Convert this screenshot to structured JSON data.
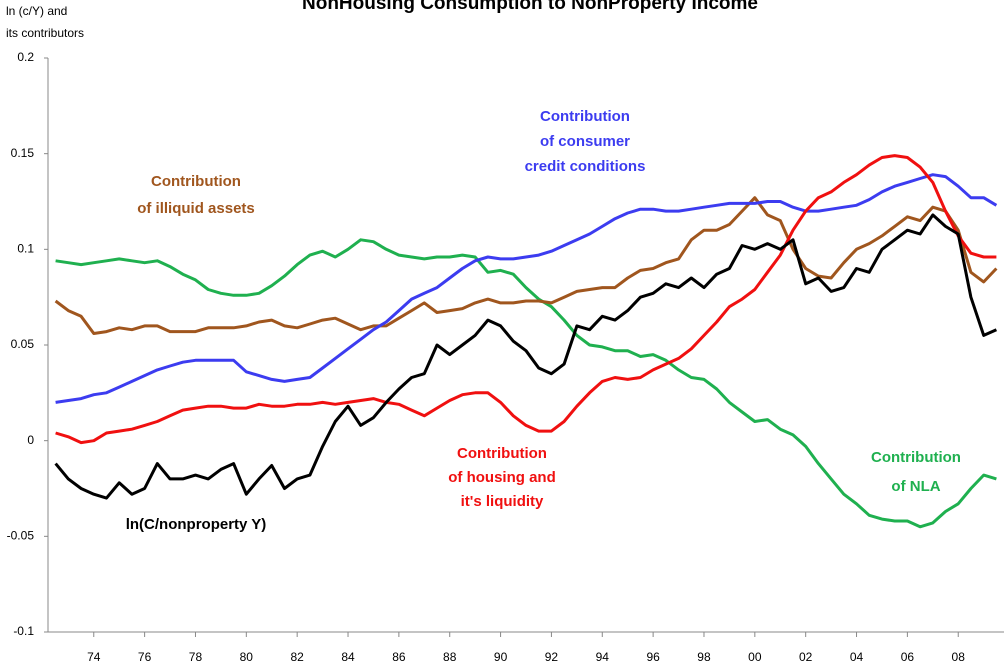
{
  "chart_data": {
    "type": "line",
    "title": "NonHousing Consumption to NonProperty Income",
    "y_label": [
      "ln (c/Y) and",
      "its contributors"
    ],
    "x": [
      1972.5,
      1973,
      1973.5,
      1974,
      1974.5,
      1975,
      1975.5,
      1976,
      1976.5,
      1977,
      1977.5,
      1978,
      1978.5,
      1979,
      1979.5,
      1980,
      1980.5,
      1981,
      1981.5,
      1982,
      1982.5,
      1983,
      1983.5,
      1984,
      1984.5,
      1985,
      1985.5,
      1986,
      1986.5,
      1987,
      1987.5,
      1988,
      1988.5,
      1989,
      1989.5,
      1990,
      1990.5,
      1991,
      1991.5,
      1992,
      1992.5,
      1993,
      1993.5,
      1994,
      1994.5,
      1995,
      1995.5,
      1996,
      1996.5,
      1997,
      1997.5,
      1998,
      1998.5,
      1999,
      1999.5,
      2000,
      2000.5,
      2001,
      2001.5,
      2002,
      2002.5,
      2003,
      2003.5,
      2004,
      2004.5,
      2005,
      2005.5,
      2006,
      2006.5,
      2007,
      2007.5,
      2008,
      2008.5,
      2009,
      2009.5
    ],
    "xlim": [
      1972.2,
      2009.8
    ],
    "xticks": [
      {
        "value": 1974,
        "label": "74"
      },
      {
        "value": 1976,
        "label": "76"
      },
      {
        "value": 1978,
        "label": "78"
      },
      {
        "value": 1980,
        "label": "80"
      },
      {
        "value": 1982,
        "label": "82"
      },
      {
        "value": 1984,
        "label": "84"
      },
      {
        "value": 1986,
        "label": "86"
      },
      {
        "value": 1988,
        "label": "88"
      },
      {
        "value": 1990,
        "label": "90"
      },
      {
        "value": 1992,
        "label": "92"
      },
      {
        "value": 1994,
        "label": "94"
      },
      {
        "value": 1996,
        "label": "96"
      },
      {
        "value": 1998,
        "label": "98"
      },
      {
        "value": 2000,
        "label": "00"
      },
      {
        "value": 2002,
        "label": "02"
      },
      {
        "value": 2004,
        "label": "04"
      },
      {
        "value": 2006,
        "label": "06"
      },
      {
        "value": 2008,
        "label": "08"
      }
    ],
    "ylim": [
      -0.1,
      0.2
    ],
    "yticks": [
      -0.1,
      -0.05,
      0,
      0.05,
      0.1,
      0.15,
      0.2
    ],
    "grid": false,
    "series": [
      {
        "name": "Contribution of NLA",
        "color": "#1fb04f",
        "values": [
          0.094,
          0.093,
          0.092,
          0.093,
          0.094,
          0.095,
          0.094,
          0.093,
          0.094,
          0.091,
          0.087,
          0.084,
          0.079,
          0.077,
          0.076,
          0.076,
          0.077,
          0.081,
          0.086,
          0.092,
          0.097,
          0.099,
          0.096,
          0.1,
          0.105,
          0.104,
          0.1,
          0.097,
          0.096,
          0.095,
          0.096,
          0.096,
          0.097,
          0.096,
          0.088,
          0.089,
          0.087,
          0.08,
          0.074,
          0.07,
          0.063,
          0.055,
          0.05,
          0.049,
          0.047,
          0.047,
          0.044,
          0.045,
          0.042,
          0.037,
          0.033,
          0.032,
          0.027,
          0.02,
          0.015,
          0.01,
          0.011,
          0.006,
          0.003,
          -0.003,
          -0.012,
          -0.02,
          -0.028,
          -0.033,
          -0.039,
          -0.041,
          -0.042,
          -0.042,
          -0.045,
          -0.043,
          -0.037,
          -0.033,
          -0.025,
          -0.018,
          -0.02
        ]
      },
      {
        "name": "Contribution of illiquid assets",
        "color": "#a0561e",
        "values": [
          0.073,
          0.068,
          0.065,
          0.056,
          0.057,
          0.059,
          0.058,
          0.06,
          0.06,
          0.057,
          0.057,
          0.057,
          0.059,
          0.059,
          0.059,
          0.06,
          0.062,
          0.063,
          0.06,
          0.059,
          0.061,
          0.063,
          0.064,
          0.061,
          0.058,
          0.06,
          0.06,
          0.064,
          0.068,
          0.072,
          0.067,
          0.068,
          0.069,
          0.072,
          0.074,
          0.072,
          0.072,
          0.073,
          0.073,
          0.072,
          0.075,
          0.078,
          0.079,
          0.08,
          0.08,
          0.085,
          0.089,
          0.09,
          0.093,
          0.095,
          0.105,
          0.11,
          0.11,
          0.113,
          0.12,
          0.127,
          0.118,
          0.115,
          0.1,
          0.09,
          0.086,
          0.085,
          0.093,
          0.1,
          0.103,
          0.107,
          0.112,
          0.117,
          0.115,
          0.122,
          0.12,
          0.11,
          0.088,
          0.083,
          0.09
        ]
      },
      {
        "name": "Contribution of consumer credit conditions",
        "color": "#3c3cf0",
        "values": [
          0.02,
          0.021,
          0.022,
          0.024,
          0.025,
          0.028,
          0.031,
          0.034,
          0.037,
          0.039,
          0.041,
          0.042,
          0.042,
          0.042,
          0.042,
          0.036,
          0.034,
          0.032,
          0.031,
          0.032,
          0.033,
          0.038,
          0.043,
          0.048,
          0.053,
          0.058,
          0.062,
          0.068,
          0.074,
          0.077,
          0.08,
          0.085,
          0.09,
          0.094,
          0.096,
          0.095,
          0.095,
          0.096,
          0.097,
          0.099,
          0.102,
          0.105,
          0.108,
          0.112,
          0.116,
          0.119,
          0.121,
          0.121,
          0.12,
          0.12,
          0.121,
          0.122,
          0.123,
          0.124,
          0.124,
          0.124,
          0.125,
          0.125,
          0.122,
          0.12,
          0.12,
          0.121,
          0.122,
          0.123,
          0.126,
          0.13,
          0.133,
          0.135,
          0.137,
          0.139,
          0.138,
          0.133,
          0.127,
          0.127,
          0.123
        ]
      },
      {
        "name": "Contribution of housing and it's liquidity",
        "color": "#f01010",
        "values": [
          0.004,
          0.002,
          -0.001,
          0,
          0.004,
          0.005,
          0.006,
          0.008,
          0.01,
          0.013,
          0.016,
          0.017,
          0.018,
          0.018,
          0.017,
          0.017,
          0.019,
          0.018,
          0.018,
          0.019,
          0.019,
          0.02,
          0.019,
          0.02,
          0.021,
          0.022,
          0.02,
          0.019,
          0.016,
          0.013,
          0.017,
          0.021,
          0.024,
          0.025,
          0.025,
          0.02,
          0.013,
          0.008,
          0.005,
          0.005,
          0.01,
          0.018,
          0.025,
          0.031,
          0.033,
          0.032,
          0.033,
          0.037,
          0.04,
          0.043,
          0.048,
          0.055,
          0.062,
          0.07,
          0.074,
          0.079,
          0.088,
          0.097,
          0.11,
          0.12,
          0.127,
          0.13,
          0.135,
          0.139,
          0.144,
          0.148,
          0.149,
          0.148,
          0.143,
          0.135,
          0.12,
          0.107,
          0.098,
          0.096,
          0.096
        ]
      },
      {
        "name": "ln(C/nonproperty Y)",
        "color": "#000000",
        "values": [
          -0.012,
          -0.02,
          -0.025,
          -0.028,
          -0.03,
          -0.022,
          -0.028,
          -0.025,
          -0.012,
          -0.02,
          -0.02,
          -0.018,
          -0.02,
          -0.015,
          -0.012,
          -0.028,
          -0.02,
          -0.013,
          -0.025,
          -0.02,
          -0.018,
          -0.003,
          0.01,
          0.018,
          0.008,
          0.012,
          0.02,
          0.027,
          0.033,
          0.035,
          0.05,
          0.045,
          0.05,
          0.055,
          0.063,
          0.06,
          0.052,
          0.047,
          0.038,
          0.035,
          0.04,
          0.06,
          0.058,
          0.065,
          0.063,
          0.068,
          0.075,
          0.077,
          0.082,
          0.08,
          0.085,
          0.08,
          0.087,
          0.09,
          0.102,
          0.1,
          0.103,
          0.1,
          0.105,
          0.082,
          0.085,
          0.078,
          0.08,
          0.09,
          0.088,
          0.1,
          0.105,
          0.11,
          0.108,
          0.118,
          0.112,
          0.108,
          0.075,
          0.055,
          0.058
        ]
      }
    ],
    "annotations": [
      {
        "text": [
          "Contribution",
          "of illiquid assets"
        ],
        "color": "#a0561e"
      },
      {
        "text": [
          "Contribution",
          "of consumer",
          "credit conditions"
        ],
        "color": "#3c3cf0"
      },
      {
        "text": [
          "Contribution",
          "of housing and",
          "it's liquidity"
        ],
        "color": "#f01010"
      },
      {
        "text": [
          "Contribution",
          "of NLA"
        ],
        "color": "#1fb04f"
      },
      {
        "text": [
          "ln(C/nonproperty Y)"
        ],
        "color": "#000000"
      }
    ]
  }
}
